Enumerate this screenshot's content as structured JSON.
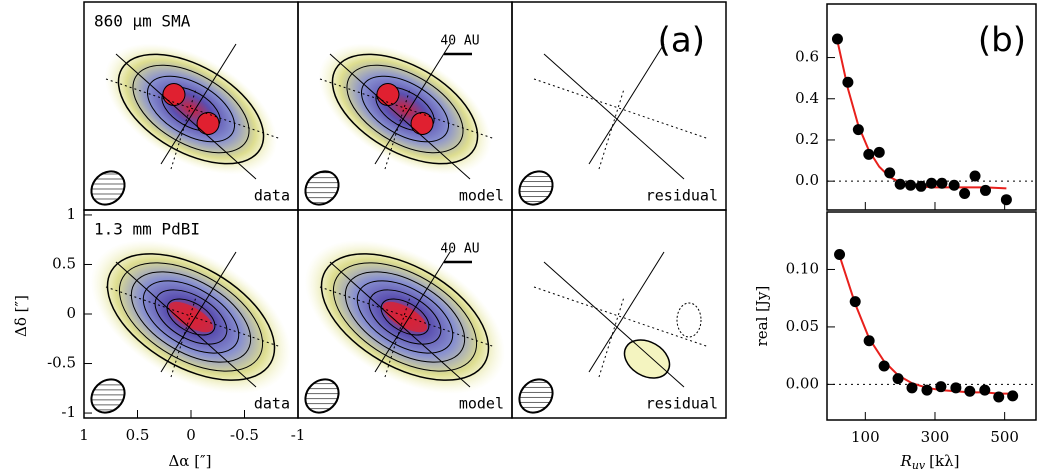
{
  "chart_data": [
    {
      "type": "image-grid",
      "panel_label": "(a)",
      "rows": [
        "860 μm SMA",
        "1.3 mm PdBI"
      ],
      "columns": [
        "data",
        "model",
        "residual"
      ],
      "scale_bar": "40 AU",
      "xlabel": "Δα [″]",
      "ylabel": "Δδ [″]",
      "xlim": [
        1,
        -1
      ],
      "ylim": [
        -1.05,
        1.05
      ],
      "xticks": [
        1,
        0.5,
        0,
        -0.5,
        -1
      ],
      "yticks": [
        1,
        0.5,
        0,
        -0.5,
        -1
      ]
    },
    {
      "type": "scatter",
      "panel_label": "(b)",
      "color": "#000000",
      "model_color": "#e8201c",
      "zero_line": true,
      "xlim": [
        -10,
        590
      ],
      "ylim": [
        -0.14,
        0.86
      ],
      "yticks": [
        {
          "value": 0,
          "label": "0.0"
        },
        0.2,
        0.4,
        0.6
      ],
      "x": [
        20,
        50,
        80,
        110,
        140,
        170,
        200,
        230,
        260,
        290,
        320,
        355,
        385,
        415,
        445,
        505
      ],
      "values": [
        0.69,
        0.48,
        0.25,
        0.13,
        0.14,
        0.04,
        -0.015,
        -0.02,
        -0.025,
        -0.01,
        -0.01,
        -0.02,
        -0.06,
        0.025,
        -0.045,
        -0.09
      ],
      "model": [
        0.68,
        0.45,
        0.27,
        0.15,
        0.07,
        0.02,
        -0.005,
        -0.02,
        -0.025,
        -0.03,
        -0.03,
        -0.03,
        -0.03,
        -0.03,
        -0.03,
        -0.035
      ]
    },
    {
      "type": "scatter",
      "color": "#000000",
      "model_color": "#e8201c",
      "zero_line": true,
      "xlabel_main": "R",
      "xlabel_sub": "uv",
      "xlabel_unit": "[kλ]",
      "ylabel": "real [Jy]",
      "xlim": [
        -10,
        590
      ],
      "ylim": [
        -0.031,
        0.15
      ],
      "xticks": [
        100,
        300,
        500
      ],
      "yticks": [
        {
          "value": 0,
          "label": "0.00"
        },
        0.05,
        {
          "value": 0.1,
          "label": "0.10"
        }
      ],
      "x": [
        26,
        71,
        111,
        154,
        194,
        234,
        277,
        317,
        360,
        400,
        443,
        483,
        523
      ],
      "values": [
        0.113,
        0.072,
        0.038,
        0.016,
        0.005,
        -0.003,
        -0.005,
        -0.002,
        -0.003,
        -0.006,
        -0.005,
        -0.011,
        -0.01
      ],
      "model": [
        0.112,
        0.07,
        0.04,
        0.02,
        0.008,
        0.001,
        -0.003,
        -0.005,
        -0.006,
        -0.007,
        -0.007,
        -0.008,
        -0.008
      ]
    }
  ]
}
